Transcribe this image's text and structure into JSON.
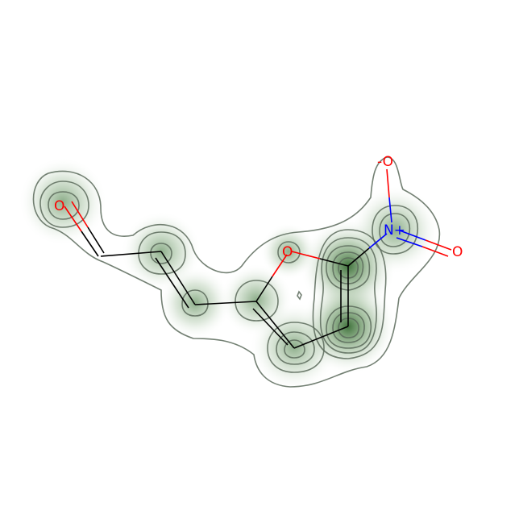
{
  "colors": {
    "carbon": "#000000",
    "oxygen": "#ff0000",
    "nitrogen": "#0000ff",
    "density": "#2f6b2a",
    "contour": "#5a6a5a"
  },
  "atoms": [
    {
      "id": "o1",
      "label": "O",
      "element": "O"
    },
    {
      "id": "o2",
      "label": "O",
      "element": "O"
    },
    {
      "id": "o3",
      "label": "-O",
      "element": "O"
    },
    {
      "id": "n1",
      "label": "N+",
      "element": "N"
    },
    {
      "id": "o4",
      "label": "O",
      "element": "O"
    }
  ]
}
